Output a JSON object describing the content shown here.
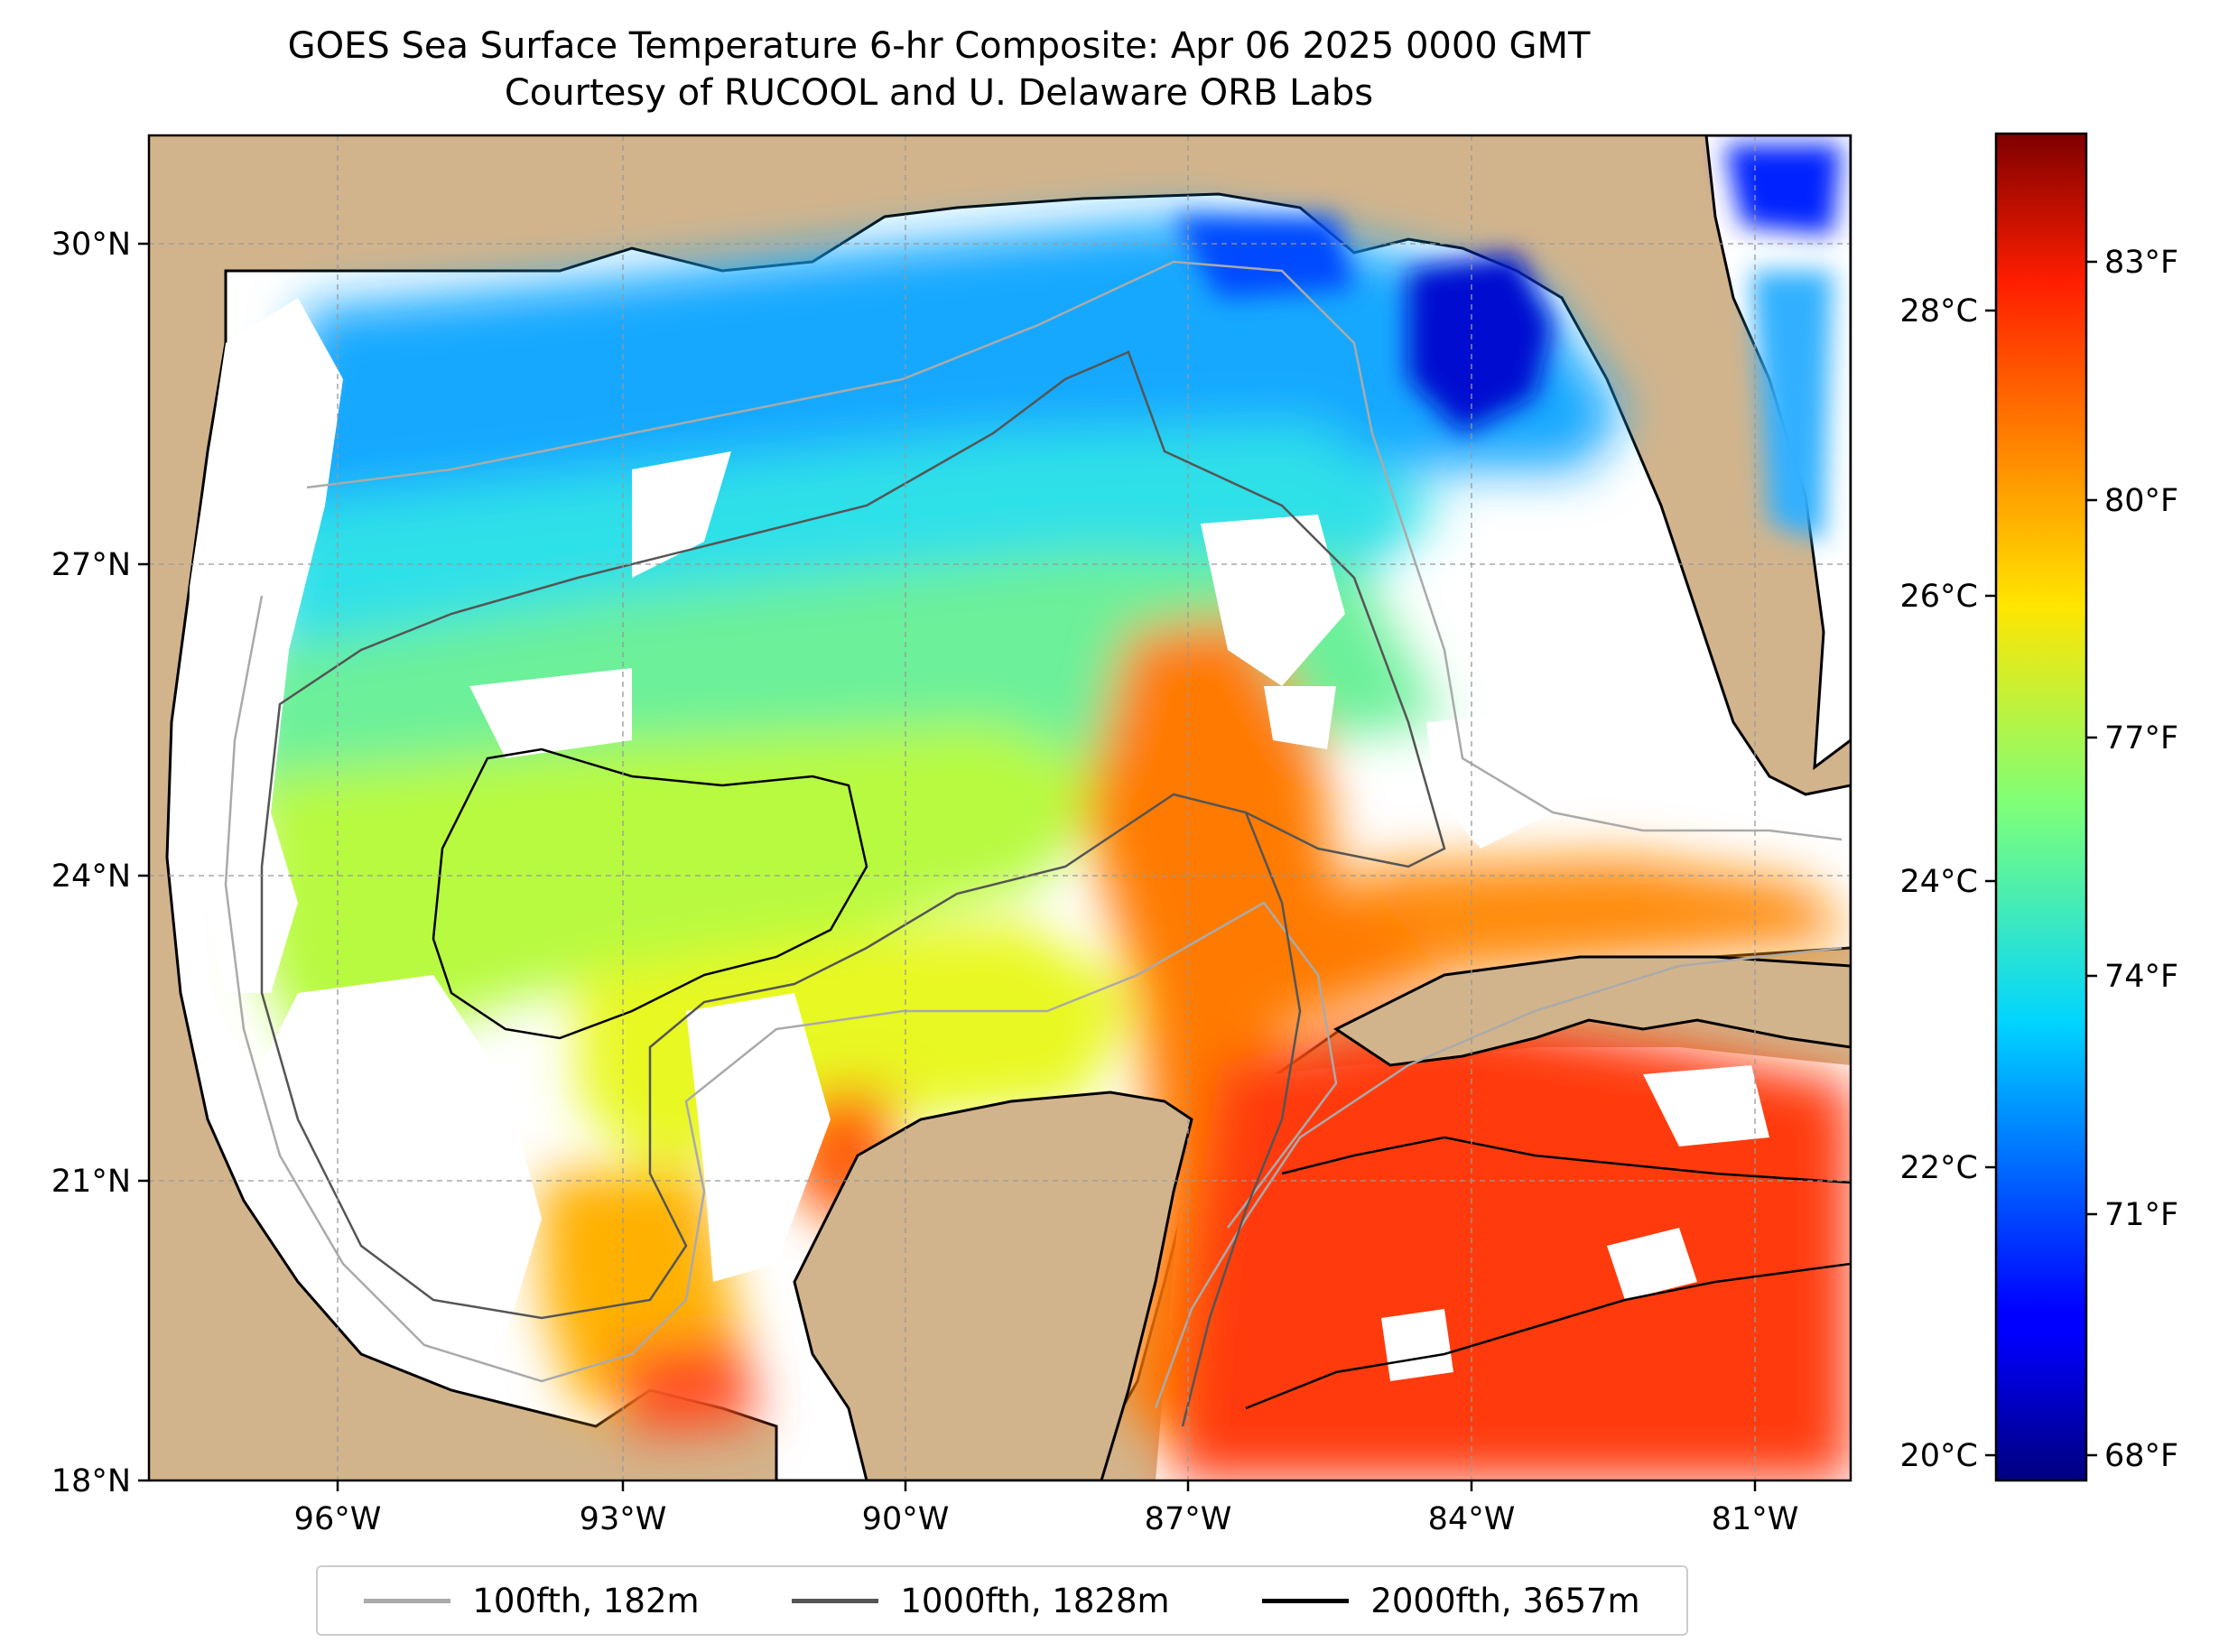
{
  "title": {
    "line1": "GOES Sea Surface Temperature 6-hr Composite: Apr 06 2025 0000 GMT",
    "line2": "Courtesy of RUCOOL and U. Delaware ORB Labs"
  },
  "map": {
    "lat_labels": [
      "30°N",
      "27°N",
      "24°N",
      "21°N",
      "18°N"
    ],
    "lon_labels": [
      "96°W",
      "93°W",
      "90°W",
      "87°W",
      "84°W",
      "81°W"
    ],
    "land_color": "#d2b48c",
    "no_data_color": "#ffffff"
  },
  "colorbar": {
    "colormap": "jet",
    "celsius_labels": [
      "28°C",
      "26°C",
      "24°C",
      "22°C",
      "20°C"
    ],
    "fahrenheit_labels": [
      "83°F",
      "80°F",
      "77°F",
      "74°F",
      "71°F",
      "68°F"
    ]
  },
  "legend": {
    "items": [
      {
        "label": "100fth, 182m",
        "color": "#aaaaaa"
      },
      {
        "label": "1000fth, 1828m",
        "color": "#555555"
      },
      {
        "label": "2000fth, 3657m",
        "color": "#000000"
      }
    ]
  }
}
